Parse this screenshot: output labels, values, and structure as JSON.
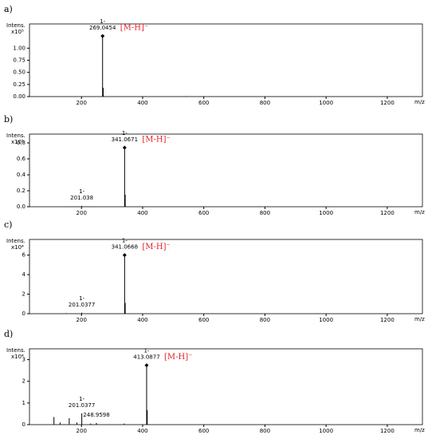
{
  "chart_data": [
    {
      "type": "spectrum",
      "panel_label": "a)",
      "ylabel": "Intens.",
      "scale_label": "x10⁵",
      "xlabel": "m/z",
      "ion_label": "[M-H]⁻",
      "ion_label_color": "#e3212b",
      "color": "#000000",
      "xlim": [
        30,
        1315
      ],
      "xticks": [
        200,
        400,
        600,
        800,
        1000,
        1200
      ],
      "ylim": [
        0,
        1.5
      ],
      "yticks": [
        {
          "value": 0,
          "label": "0.00"
        },
        {
          "value": 0.25,
          "label": "0.25"
        },
        {
          "value": 0.5,
          "label": "0.50"
        },
        {
          "value": 0.75,
          "label": "0.75"
        },
        {
          "value": 1,
          "label": "1.00"
        }
      ],
      "labeled_peaks": [
        {
          "mz": 269.0454,
          "intensity": 1.25,
          "charge": "1-"
        }
      ],
      "other_peaks": {
        "x": [
          271,
          542
        ],
        "values": [
          0.18,
          0.01
        ]
      }
    },
    {
      "type": "spectrum",
      "panel_label": "b)",
      "ylabel": "Intens.",
      "scale_label": "x10⁵",
      "xlabel": "m/z",
      "ion_label": "[M-H]⁻",
      "ion_label_color": "#e3212b",
      "color": "#000000",
      "xlim": [
        30,
        1315
      ],
      "xticks": [
        200,
        400,
        600,
        800,
        1000,
        1200
      ],
      "ylim": [
        0,
        0.91
      ],
      "yticks": [
        {
          "value": 0,
          "label": "0.0"
        },
        {
          "value": 0.2,
          "label": "0.2"
        },
        {
          "value": 0.4,
          "label": "0.4"
        },
        {
          "value": 0.6,
          "label": "0.6"
        },
        {
          "value": 0.8,
          "label": "0.8"
        }
      ],
      "labeled_peaks": [
        {
          "mz": 341.0671,
          "intensity": 0.74,
          "charge": "1-"
        },
        {
          "mz": 201.038,
          "intensity": 0.01,
          "charge": "1-"
        }
      ],
      "other_peaks": {
        "x": [
          343
        ],
        "values": [
          0.15
        ]
      }
    },
    {
      "type": "spectrum",
      "panel_label": "c)",
      "ylabel": "Intens.",
      "scale_label": "x10⁴",
      "xlabel": "m/z",
      "ion_label": "[M-H]⁻",
      "ion_label_color": "#e3212b",
      "color": "#000000",
      "xlim": [
        30,
        1315
      ],
      "xticks": [
        200,
        400,
        600,
        800,
        1000,
        1200
      ],
      "ylim": [
        0,
        7.6
      ],
      "yticks": [
        0,
        2,
        4,
        6
      ],
      "labeled_peaks": [
        {
          "mz": 341.0668,
          "intensity": 6.0,
          "charge": "1-"
        },
        {
          "mz": 201.0377,
          "intensity": 0.1,
          "charge": "1-"
        }
      ],
      "other_peaks": {
        "x": [
          343,
          150
        ],
        "values": [
          1.1,
          0.05
        ]
      }
    },
    {
      "type": "spectrum",
      "panel_label": "d)",
      "ylabel": "Intens.",
      "scale_label": "x10⁴",
      "xlabel": "m/z",
      "ion_label": "[M-H]⁻",
      "ion_label_color": "#e3212b",
      "color": "#000000",
      "xlim": [
        30,
        1315
      ],
      "xticks": [
        200,
        400,
        600,
        800,
        1000,
        1200
      ],
      "ylim": [
        0,
        3.5
      ],
      "yticks": [
        0,
        1,
        2,
        3
      ],
      "labeled_peaks": [
        {
          "mz": 413.0877,
          "intensity": 2.74,
          "charge": "1-"
        },
        {
          "mz": 201.0377,
          "intensity": 0.52,
          "charge": "1-"
        },
        {
          "mz": 248.9598,
          "intensity": 0.08
        }
      ],
      "other_peaks": {
        "x": [
          415,
          110,
          130,
          160,
          185,
          340,
          230
        ],
        "values": [
          0.67,
          0.35,
          0.1,
          0.3,
          0.1,
          0.05,
          0.05
        ]
      }
    }
  ]
}
